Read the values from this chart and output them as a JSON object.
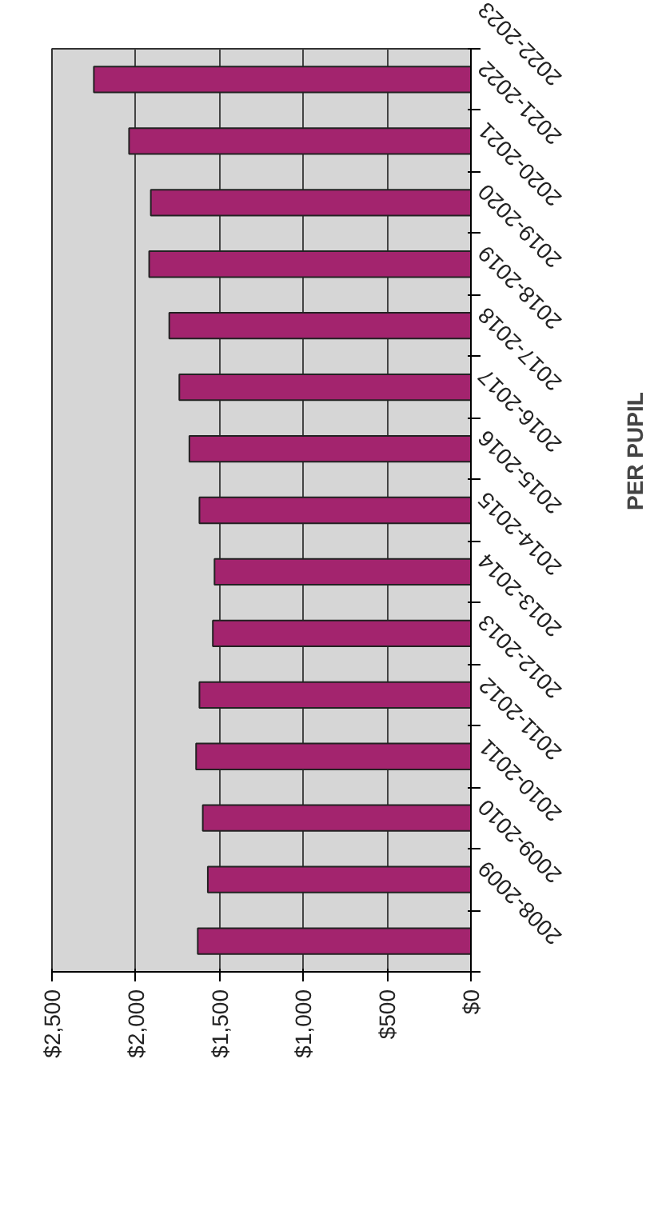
{
  "chart_data": {
    "type": "bar",
    "orientation": "horizontal",
    "ylabel": "PER PUPIL",
    "categories": [
      "2022-2023",
      "2021-2022",
      "2020-2021",
      "2019-2020",
      "2018-2019",
      "2017-2018",
      "2016-2017",
      "2015-2016",
      "2014-2015",
      "2013-2014",
      "2012-2013",
      "2011-2012",
      "2010-2011",
      "2009-2010",
      "2008-2009"
    ],
    "values": [
      2250,
      2040,
      1910,
      1920,
      1800,
      1740,
      1680,
      1620,
      1530,
      1540,
      1620,
      1640,
      1600,
      1570,
      1630
    ],
    "color": "#a3246e",
    "xlim": [
      2500,
      0
    ],
    "xticks": [
      {
        "value": 2500,
        "label": "$2,500"
      },
      {
        "value": 2000,
        "label": "$2,000"
      },
      {
        "value": 1500,
        "label": "$1,500"
      },
      {
        "value": 1000,
        "label": "$1,000"
      },
      {
        "value": 500,
        "label": "$500"
      },
      {
        "value": 0,
        "label": "$0"
      }
    ],
    "grid": "x"
  }
}
